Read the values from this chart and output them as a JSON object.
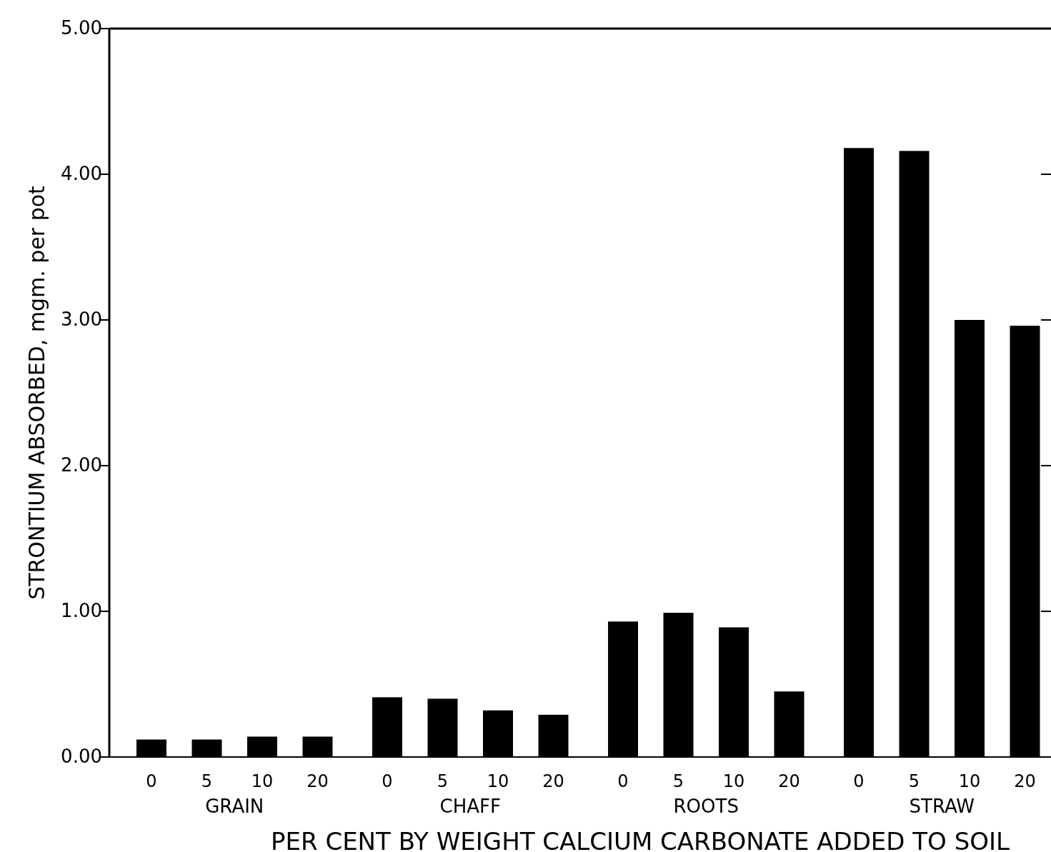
{
  "chart_data": {
    "type": "bar",
    "xlabel": "PER CENT BY WEIGHT CALCIUM CARBONATE ADDED TO SOIL",
    "ylabel": "STRONTIUM ABSORBED, mgm. per pot",
    "categories": [
      "0",
      "5",
      "10",
      "20",
      "0",
      "5",
      "10",
      "20",
      "0",
      "5",
      "10",
      "20",
      "0",
      "5",
      "10",
      "20"
    ],
    "values": [
      0.12,
      0.12,
      0.14,
      0.14,
      0.41,
      0.4,
      0.32,
      0.29,
      0.93,
      0.99,
      0.89,
      0.45,
      4.18,
      4.16,
      3.0,
      2.96
    ],
    "color": "#000000",
    "ylim": [
      0,
      5
    ],
    "yticks": [
      {
        "value": 0,
        "label": "0.00"
      },
      {
        "value": 1,
        "label": "1.00"
      },
      {
        "value": 2,
        "label": "2.00"
      },
      {
        "value": 3,
        "label": "3.00"
      },
      {
        "value": 4,
        "label": "4.00"
      },
      {
        "value": 5,
        "label": "5.00"
      }
    ],
    "annotations": [
      "GRAIN",
      "CHAFF",
      "ROOTS",
      "STRAW"
    ]
  }
}
